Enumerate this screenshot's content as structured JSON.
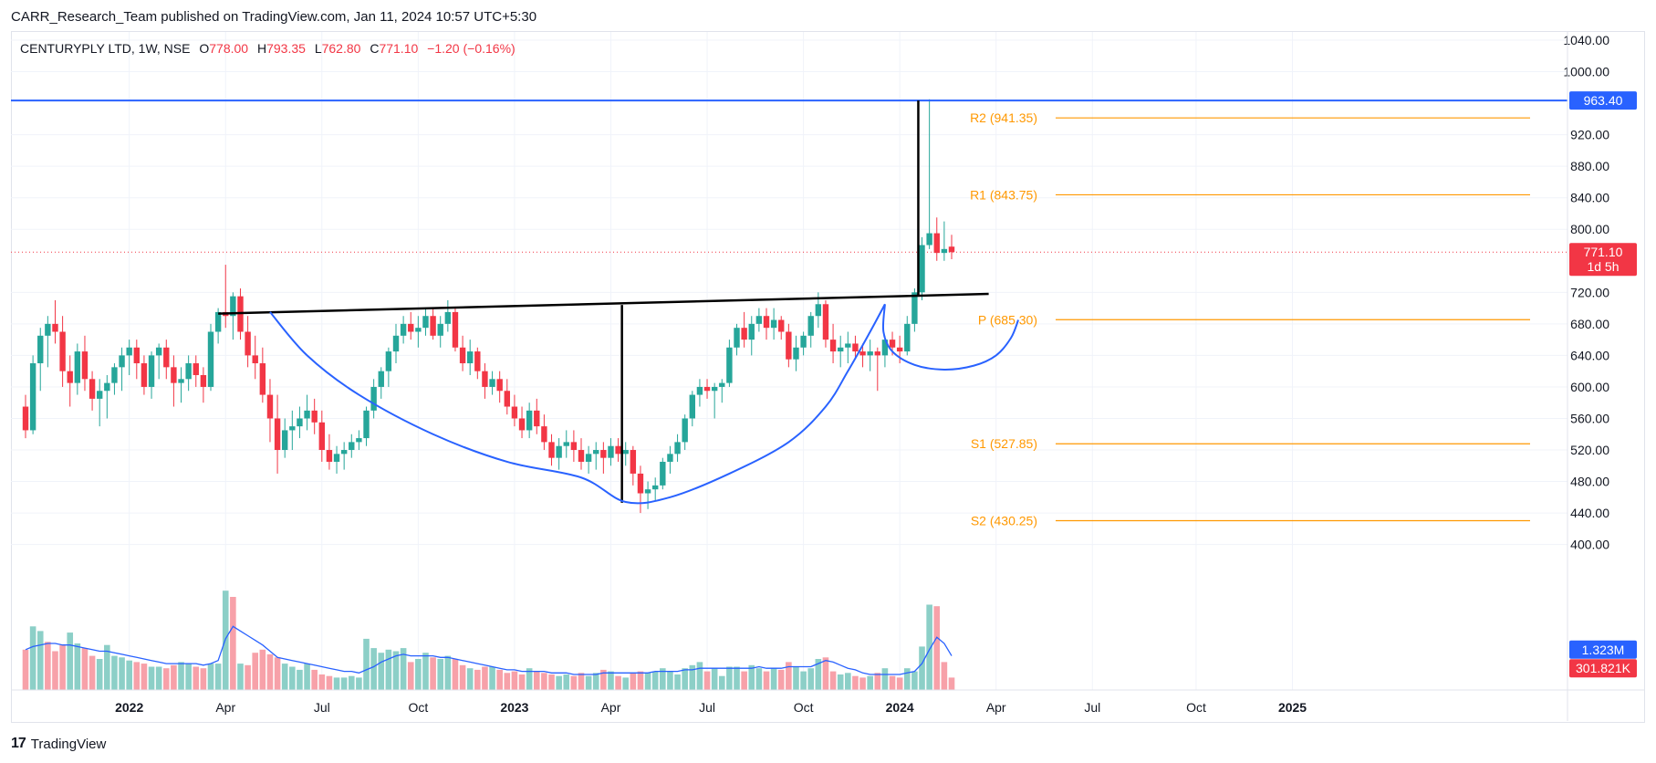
{
  "caption": "CARR_Research_Team published on TradingView.com, Jan 11, 2024 10:57 UTC+5:30",
  "legend": {
    "symbol": "CENTURYPLY LTD, 1W, NSE",
    "open_label": "O",
    "open": "778.00",
    "high_label": "H",
    "high": "793.35",
    "low_label": "L",
    "low": "762.80",
    "close_label": "C",
    "close": "771.10",
    "change": "−1.20 (−0.16%)"
  },
  "footer": {
    "brand": "TradingView",
    "logo_glyph": "17"
  },
  "colors": {
    "up": "#26a69a",
    "down": "#f23645",
    "vol_up": "#8ccfc7",
    "vol_down": "#f7a1a9",
    "pivot": "#ff9800",
    "trend": "#2962ff",
    "grid": "#f0f3fa"
  },
  "chart_data": {
    "type": "candlestick",
    "y_axis": {
      "min": 390,
      "max": 1040,
      "ticks": [
        "1040.00",
        "1000.00",
        "920.00",
        "880.00",
        "840.00",
        "800.00",
        "720.00",
        "680.00",
        "640.00",
        "600.00",
        "560.00",
        "520.00",
        "480.00",
        "440.00",
        "400.00"
      ]
    },
    "x_axis": {
      "start_date": "2021-09-27",
      "ticks": [
        {
          "label": "2022",
          "date": "2022-01-03",
          "bold": true
        },
        {
          "label": "Apr",
          "date": "2022-04-04"
        },
        {
          "label": "Jul",
          "date": "2022-07-04"
        },
        {
          "label": "Oct",
          "date": "2022-10-03"
        },
        {
          "label": "2023",
          "date": "2023-01-02",
          "bold": true
        },
        {
          "label": "Apr",
          "date": "2023-04-03"
        },
        {
          "label": "Jul",
          "date": "2023-07-03"
        },
        {
          "label": "Oct",
          "date": "2023-10-02"
        },
        {
          "label": "2024",
          "date": "2024-01-01",
          "bold": true
        },
        {
          "label": "Apr",
          "date": "2024-04-01"
        },
        {
          "label": "Jul",
          "date": "2024-07-01"
        },
        {
          "label": "Oct",
          "date": "2024-10-07"
        },
        {
          "label": "2025",
          "date": "2025-01-06",
          "bold": true
        }
      ]
    },
    "candles": [
      [
        575,
        590,
        535,
        545
      ],
      [
        545,
        640,
        540,
        630
      ],
      [
        630,
        675,
        595,
        665
      ],
      [
        665,
        690,
        625,
        680
      ],
      [
        680,
        710,
        655,
        670
      ],
      [
        670,
        690,
        600,
        620
      ],
      [
        620,
        640,
        575,
        605
      ],
      [
        605,
        655,
        590,
        645
      ],
      [
        645,
        665,
        595,
        610
      ],
      [
        610,
        620,
        570,
        585
      ],
      [
        585,
        610,
        550,
        595
      ],
      [
        595,
        615,
        560,
        605
      ],
      [
        605,
        630,
        590,
        625
      ],
      [
        625,
        650,
        595,
        640
      ],
      [
        640,
        660,
        615,
        650
      ],
      [
        650,
        660,
        610,
        630
      ],
      [
        630,
        640,
        590,
        600
      ],
      [
        600,
        645,
        585,
        640
      ],
      [
        640,
        655,
        610,
        650
      ],
      [
        650,
        660,
        610,
        625
      ],
      [
        625,
        640,
        575,
        605
      ],
      [
        605,
        625,
        580,
        610
      ],
      [
        610,
        640,
        595,
        630
      ],
      [
        630,
        640,
        600,
        615
      ],
      [
        615,
        625,
        580,
        600
      ],
      [
        600,
        680,
        595,
        670
      ],
      [
        670,
        700,
        655,
        695
      ],
      [
        695,
        755,
        675,
        690
      ],
      [
        690,
        720,
        660,
        715
      ],
      [
        715,
        725,
        660,
        670
      ],
      [
        670,
        690,
        625,
        640
      ],
      [
        640,
        665,
        610,
        630
      ],
      [
        630,
        650,
        580,
        590
      ],
      [
        590,
        610,
        530,
        560
      ],
      [
        560,
        590,
        490,
        520
      ],
      [
        520,
        560,
        510,
        545
      ],
      [
        545,
        570,
        520,
        550
      ],
      [
        550,
        575,
        535,
        560
      ],
      [
        560,
        590,
        545,
        570
      ],
      [
        570,
        585,
        540,
        555
      ],
      [
        555,
        570,
        505,
        520
      ],
      [
        520,
        540,
        495,
        505
      ],
      [
        505,
        525,
        490,
        515
      ],
      [
        515,
        530,
        495,
        520
      ],
      [
        520,
        540,
        510,
        530
      ],
      [
        530,
        545,
        520,
        535
      ],
      [
        535,
        575,
        525,
        570
      ],
      [
        570,
        610,
        560,
        600
      ],
      [
        600,
        625,
        585,
        620
      ],
      [
        620,
        650,
        600,
        645
      ],
      [
        645,
        680,
        630,
        665
      ],
      [
        665,
        690,
        655,
        680
      ],
      [
        680,
        695,
        660,
        670
      ],
      [
        670,
        690,
        650,
        675
      ],
      [
        675,
        700,
        665,
        690
      ],
      [
        690,
        700,
        660,
        665
      ],
      [
        665,
        690,
        650,
        680
      ],
      [
        680,
        710,
        670,
        695
      ],
      [
        695,
        700,
        645,
        650
      ],
      [
        650,
        665,
        620,
        630
      ],
      [
        630,
        660,
        615,
        645
      ],
      [
        645,
        650,
        610,
        620
      ],
      [
        620,
        630,
        585,
        600
      ],
      [
        600,
        620,
        590,
        610
      ],
      [
        610,
        620,
        580,
        595
      ],
      [
        595,
        610,
        565,
        575
      ],
      [
        575,
        590,
        550,
        560
      ],
      [
        560,
        575,
        535,
        545
      ],
      [
        545,
        580,
        535,
        570
      ],
      [
        570,
        585,
        540,
        550
      ],
      [
        550,
        565,
        520,
        530
      ],
      [
        530,
        540,
        500,
        510
      ],
      [
        510,
        535,
        495,
        525
      ],
      [
        525,
        545,
        510,
        530
      ],
      [
        530,
        545,
        505,
        520
      ],
      [
        520,
        535,
        495,
        505
      ],
      [
        505,
        525,
        490,
        515
      ],
      [
        515,
        530,
        495,
        520
      ],
      [
        520,
        530,
        490,
        510
      ],
      [
        510,
        535,
        500,
        525
      ],
      [
        525,
        535,
        505,
        515
      ],
      [
        515,
        530,
        500,
        520
      ],
      [
        520,
        525,
        475,
        490
      ],
      [
        490,
        500,
        440,
        465
      ],
      [
        465,
        480,
        445,
        470
      ],
      [
        470,
        485,
        455,
        475
      ],
      [
        475,
        510,
        470,
        505
      ],
      [
        505,
        525,
        490,
        515
      ],
      [
        515,
        540,
        505,
        530
      ],
      [
        530,
        565,
        520,
        560
      ],
      [
        560,
        595,
        550,
        590
      ],
      [
        590,
        610,
        575,
        600
      ],
      [
        600,
        610,
        585,
        595
      ],
      [
        595,
        605,
        560,
        600
      ],
      [
        600,
        610,
        580,
        605
      ],
      [
        605,
        660,
        600,
        650
      ],
      [
        650,
        680,
        640,
        675
      ],
      [
        675,
        695,
        650,
        660
      ],
      [
        660,
        690,
        640,
        680
      ],
      [
        680,
        700,
        670,
        690
      ],
      [
        690,
        700,
        660,
        675
      ],
      [
        675,
        700,
        660,
        685
      ],
      [
        685,
        690,
        660,
        670
      ],
      [
        670,
        680,
        625,
        635
      ],
      [
        635,
        665,
        620,
        650
      ],
      [
        650,
        670,
        640,
        665
      ],
      [
        665,
        695,
        650,
        690
      ],
      [
        690,
        720,
        675,
        705
      ],
      [
        705,
        710,
        650,
        660
      ],
      [
        660,
        680,
        630,
        645
      ],
      [
        645,
        665,
        625,
        650
      ],
      [
        650,
        670,
        630,
        655
      ],
      [
        655,
        665,
        635,
        645
      ],
      [
        645,
        655,
        625,
        640
      ],
      [
        640,
        660,
        620,
        645
      ],
      [
        645,
        650,
        595,
        640
      ],
      [
        640,
        665,
        625,
        660
      ],
      [
        660,
        670,
        640,
        650
      ],
      [
        650,
        665,
        630,
        645
      ],
      [
        645,
        690,
        640,
        680
      ],
      [
        680,
        725,
        670,
        720
      ],
      [
        720,
        790,
        710,
        780
      ],
      [
        780,
        965,
        775,
        795
      ],
      [
        795,
        815,
        760,
        770
      ],
      [
        770,
        810,
        760,
        775
      ],
      [
        778,
        793,
        762,
        771
      ]
    ],
    "volume": [
      [
        0.26,
        0
      ],
      [
        0.41,
        1
      ],
      [
        0.38,
        1
      ],
      [
        0.31,
        0
      ],
      [
        0.25,
        0
      ],
      [
        0.29,
        0
      ],
      [
        0.37,
        1
      ],
      [
        0.3,
        1
      ],
      [
        0.27,
        0
      ],
      [
        0.22,
        0
      ],
      [
        0.2,
        1
      ],
      [
        0.29,
        1
      ],
      [
        0.22,
        1
      ],
      [
        0.21,
        1
      ],
      [
        0.19,
        1
      ],
      [
        0.18,
        0
      ],
      [
        0.17,
        0
      ],
      [
        0.15,
        1
      ],
      [
        0.15,
        1
      ],
      [
        0.14,
        0
      ],
      [
        0.16,
        0
      ],
      [
        0.18,
        1
      ],
      [
        0.17,
        1
      ],
      [
        0.15,
        0
      ],
      [
        0.14,
        0
      ],
      [
        0.17,
        1
      ],
      [
        0.17,
        1
      ],
      [
        0.64,
        1
      ],
      [
        0.6,
        0
      ],
      [
        0.17,
        1
      ],
      [
        0.16,
        0
      ],
      [
        0.24,
        0
      ],
      [
        0.26,
        0
      ],
      [
        0.23,
        0
      ],
      [
        0.21,
        0
      ],
      [
        0.17,
        1
      ],
      [
        0.15,
        1
      ],
      [
        0.13,
        1
      ],
      [
        0.17,
        1
      ],
      [
        0.13,
        0
      ],
      [
        0.1,
        0
      ],
      [
        0.09,
        0
      ],
      [
        0.08,
        1
      ],
      [
        0.08,
        1
      ],
      [
        0.09,
        1
      ],
      [
        0.08,
        1
      ],
      [
        0.33,
        1
      ],
      [
        0.27,
        1
      ],
      [
        0.24,
        1
      ],
      [
        0.26,
        1
      ],
      [
        0.25,
        1
      ],
      [
        0.27,
        1
      ],
      [
        0.18,
        0
      ],
      [
        0.2,
        1
      ],
      [
        0.24,
        1
      ],
      [
        0.21,
        0
      ],
      [
        0.2,
        1
      ],
      [
        0.22,
        1
      ],
      [
        0.2,
        0
      ],
      [
        0.16,
        0
      ],
      [
        0.14,
        1
      ],
      [
        0.13,
        0
      ],
      [
        0.15,
        0
      ],
      [
        0.15,
        1
      ],
      [
        0.13,
        0
      ],
      [
        0.11,
        0
      ],
      [
        0.12,
        0
      ],
      [
        0.1,
        0
      ],
      [
        0.14,
        1
      ],
      [
        0.12,
        0
      ],
      [
        0.11,
        0
      ],
      [
        0.1,
        0
      ],
      [
        0.09,
        1
      ],
      [
        0.1,
        1
      ],
      [
        0.09,
        0
      ],
      [
        0.11,
        0
      ],
      [
        0.09,
        1
      ],
      [
        0.11,
        1
      ],
      [
        0.13,
        0
      ],
      [
        0.12,
        1
      ],
      [
        0.09,
        0
      ],
      [
        0.08,
        1
      ],
      [
        0.11,
        0
      ],
      [
        0.12,
        0
      ],
      [
        0.11,
        1
      ],
      [
        0.12,
        1
      ],
      [
        0.14,
        1
      ],
      [
        0.12,
        1
      ],
      [
        0.1,
        1
      ],
      [
        0.14,
        1
      ],
      [
        0.16,
        1
      ],
      [
        0.18,
        1
      ],
      [
        0.12,
        0
      ],
      [
        0.14,
        1
      ],
      [
        0.09,
        1
      ],
      [
        0.15,
        1
      ],
      [
        0.15,
        1
      ],
      [
        0.12,
        0
      ],
      [
        0.16,
        1
      ],
      [
        0.14,
        1
      ],
      [
        0.12,
        0
      ],
      [
        0.14,
        1
      ],
      [
        0.13,
        0
      ],
      [
        0.18,
        0
      ],
      [
        0.15,
        1
      ],
      [
        0.12,
        1
      ],
      [
        0.14,
        1
      ],
      [
        0.2,
        1
      ],
      [
        0.21,
        0
      ],
      [
        0.12,
        0
      ],
      [
        0.1,
        1
      ],
      [
        0.11,
        1
      ],
      [
        0.09,
        0
      ],
      [
        0.08,
        0
      ],
      [
        0.09,
        1
      ],
      [
        0.11,
        0
      ],
      [
        0.14,
        1
      ],
      [
        0.09,
        0
      ],
      [
        0.08,
        0
      ],
      [
        0.14,
        1
      ],
      [
        0.12,
        1
      ],
      [
        0.28,
        1
      ],
      [
        0.55,
        1
      ],
      [
        0.54,
        0
      ],
      [
        0.18,
        0
      ],
      [
        0.08,
        0
      ]
    ],
    "volume_ma": [
      0.26,
      0.28,
      0.29,
      0.3,
      0.3,
      0.29,
      0.29,
      0.28,
      0.27,
      0.26,
      0.25,
      0.25,
      0.24,
      0.23,
      0.22,
      0.21,
      0.2,
      0.19,
      0.18,
      0.17,
      0.17,
      0.17,
      0.17,
      0.17,
      0.16,
      0.17,
      0.19,
      0.33,
      0.41,
      0.38,
      0.35,
      0.32,
      0.29,
      0.25,
      0.21,
      0.2,
      0.19,
      0.18,
      0.17,
      0.16,
      0.15,
      0.14,
      0.13,
      0.12,
      0.12,
      0.11,
      0.13,
      0.15,
      0.18,
      0.2,
      0.22,
      0.23,
      0.22,
      0.22,
      0.22,
      0.22,
      0.21,
      0.21,
      0.2,
      0.19,
      0.18,
      0.17,
      0.16,
      0.15,
      0.14,
      0.13,
      0.13,
      0.12,
      0.12,
      0.12,
      0.12,
      0.11,
      0.11,
      0.11,
      0.1,
      0.1,
      0.1,
      0.1,
      0.11,
      0.11,
      0.11,
      0.11,
      0.11,
      0.11,
      0.11,
      0.12,
      0.12,
      0.12,
      0.12,
      0.13,
      0.13,
      0.14,
      0.14,
      0.14,
      0.14,
      0.14,
      0.14,
      0.14,
      0.14,
      0.15,
      0.14,
      0.14,
      0.14,
      0.15,
      0.15,
      0.15,
      0.15,
      0.17,
      0.19,
      0.18,
      0.16,
      0.14,
      0.13,
      0.11,
      0.1,
      0.1,
      0.1,
      0.1,
      0.1,
      0.11,
      0.12,
      0.17,
      0.26,
      0.34,
      0.3,
      0.22
    ],
    "pivots": [
      {
        "label": "R2 (941.35)",
        "value": 941.35
      },
      {
        "label": "R1 (843.75)",
        "value": 843.75
      },
      {
        "label": "P (685.30)",
        "value": 685.3
      },
      {
        "label": "S1 (527.85)",
        "value": 527.85
      },
      {
        "label": "S2 (430.25)",
        "value": 430.25
      }
    ],
    "horizontal_line": {
      "value": 963.4,
      "label": "963.40"
    },
    "last_price": {
      "value": 771.1,
      "label": "771.10",
      "countdown": "1d 5h"
    },
    "volume_labels": {
      "ma": "1.323M",
      "volume": "301.821K"
    },
    "neckline": {
      "from": {
        "bar": 26,
        "price": 693
      },
      "to": {
        "bar": 130,
        "price": 718
      }
    },
    "cup_depth": {
      "bar": 80.5,
      "top": 704,
      "bottom": 453
    },
    "breakout": {
      "bar": 120.5,
      "top": 963.4,
      "bottom": 715
    },
    "cup_curve": [
      [
        33,
        695
      ],
      [
        38,
        640
      ],
      [
        45,
        590
      ],
      [
        55,
        540
      ],
      [
        65,
        505
      ],
      [
        75,
        485
      ],
      [
        81,
        454
      ],
      [
        87,
        460
      ],
      [
        95,
        490
      ],
      [
        103,
        530
      ],
      [
        108,
        575
      ],
      [
        111,
        620
      ],
      [
        114,
        670
      ],
      [
        116,
        705
      ]
    ],
    "handle_curve": [
      [
        116,
        705
      ],
      [
        115.8,
        670
      ],
      [
        117,
        645
      ],
      [
        120,
        628
      ],
      [
        124,
        622
      ],
      [
        128,
        627
      ],
      [
        131,
        640
      ],
      [
        133,
        662
      ],
      [
        134,
        685
      ]
    ]
  }
}
